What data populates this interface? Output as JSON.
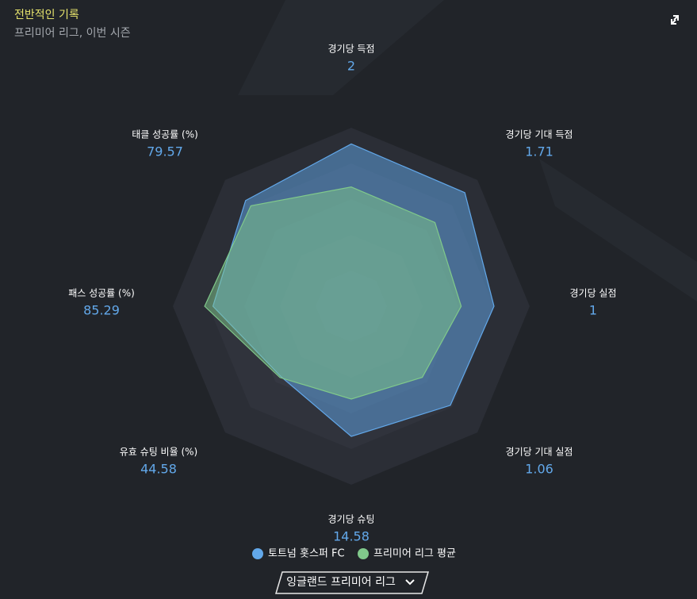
{
  "chart_data": {
    "type": "radar",
    "title": "전반적인 기록",
    "subtitle": "프리미어 리그, 이번 시즌",
    "categories": [
      "경기당 득점",
      "경기당 기대 득점",
      "경기당 실점",
      "경기당 기대 실점",
      "경기당 슈팅",
      "유효 슈팅 비율 (%)",
      "패스 성공률 (%)",
      "태클 성공률 (%)"
    ],
    "rlim": [
      [
        0,
        2.2
      ],
      [
        0,
        1.9
      ],
      [
        0,
        1.25
      ],
      [
        0,
        1.35
      ],
      [
        0,
        20
      ],
      [
        0,
        80
      ],
      [
        0,
        110
      ],
      [
        0,
        95
      ]
    ],
    "series": [
      {
        "name": "토트넘 홋스퍼 FC",
        "color": "#62a8ea",
        "values": [
          2,
          1.71,
          1,
          1.06,
          14.58,
          44.58,
          85.29,
          79.57
        ]
      },
      {
        "name": "프리미어 리그 평균",
        "color": "#80c98b",
        "values": [
          1.47,
          1.26,
          0.77,
          0.76,
          10.4,
          45.2,
          90.4,
          75.6
        ]
      }
    ]
  },
  "dropdown": {
    "label": "잉글랜드 프리미어 리그"
  }
}
